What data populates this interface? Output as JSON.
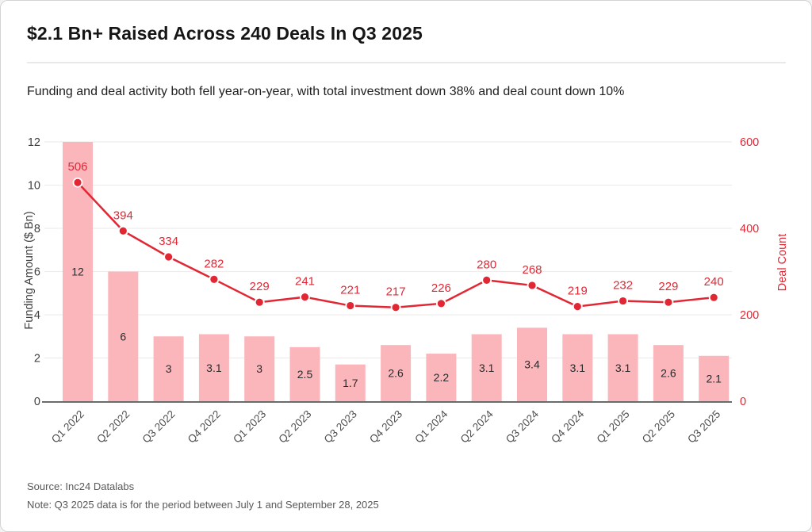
{
  "page": {
    "title": "$2.1 Bn+ Raised Across 240 Deals In Q3 2025",
    "subtitle": "Funding and deal activity both fell year-on-year, with total investment down 38% and deal count down 10%",
    "source_line": "Source: Inc24 Datalabs",
    "note_line": "Note: Q3 2025 data is for the period between July 1 and September 28, 2025"
  },
  "chart_data": {
    "type": "bar+line",
    "categories": [
      "Q1 2022",
      "Q2 2022",
      "Q3 2022",
      "Q4 2022",
      "Q1 2023",
      "Q2 2023",
      "Q3 2023",
      "Q4 2023",
      "Q1 2024",
      "Q2 2024",
      "Q3 2024",
      "Q4 2024",
      "Q1 2025",
      "Q2 2025",
      "Q3 2025"
    ],
    "series": [
      {
        "name": "Funding Amount ($ Bn)",
        "type": "bar",
        "axis": "left",
        "values": [
          12,
          6,
          3,
          3.1,
          3,
          2.5,
          1.7,
          2.6,
          2.2,
          3.1,
          3.4,
          3.1,
          3.1,
          2.6,
          2.1
        ]
      },
      {
        "name": "Deal Count",
        "type": "line",
        "axis": "right",
        "values": [
          506,
          394,
          334,
          282,
          229,
          241,
          221,
          217,
          226,
          280,
          268,
          219,
          232,
          229,
          240
        ]
      }
    ],
    "left_axis": {
      "label": "Funding Amount ($ Bn)",
      "range": [
        0,
        12
      ],
      "ticks": [
        0,
        2,
        4,
        6,
        8,
        10,
        12
      ]
    },
    "right_axis": {
      "label": "Deal Count",
      "range": [
        0,
        600
      ],
      "ticks": [
        0,
        200,
        400,
        600
      ]
    },
    "grid": true,
    "legend": "none",
    "colors": {
      "bar_fill": "#fbb6bc",
      "line": "#e22734",
      "point_fill": "#e22734",
      "point_ring": "#ffffff",
      "right_axis_text": "#e22734",
      "left_axis_text": "#3f3f3f",
      "bar_label_text": "#2a2a2a",
      "x_label_text": "#4f4f4f",
      "gridline": "#ededed",
      "baseline": "#6b6b6b"
    }
  }
}
